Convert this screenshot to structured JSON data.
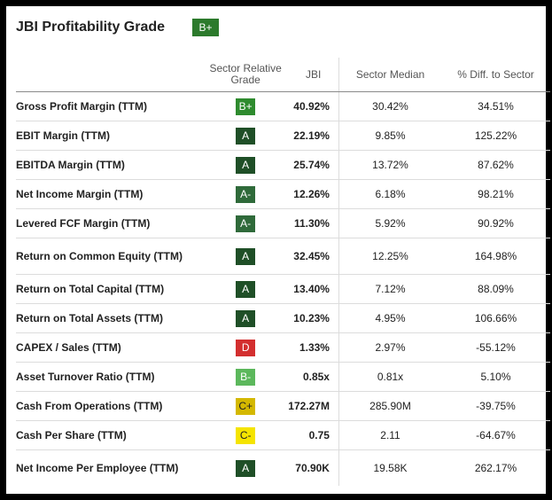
{
  "header": {
    "title": "JBI Profitability Grade",
    "overall_grade": "B+",
    "overall_grade_bg": "#2c7a2c",
    "overall_grade_fg": "#ffffff"
  },
  "columns": {
    "metric": "",
    "grade": "Sector Relative Grade",
    "jbi": "JBI",
    "median": "Sector Median",
    "diff": "% Diff. to Sector"
  },
  "rows": [
    {
      "metric": "Gross Profit Margin (TTM)",
      "grade": "B+",
      "grade_bg": "#2e8b2e",
      "grade_fg": "#ffffff",
      "jbi": "40.92%",
      "median": "30.42%",
      "diff": "34.51%",
      "tall": false
    },
    {
      "metric": "EBIT Margin (TTM)",
      "grade": "A",
      "grade_bg": "#1f4f27",
      "grade_fg": "#ffffff",
      "jbi": "22.19%",
      "median": "9.85%",
      "diff": "125.22%",
      "tall": false
    },
    {
      "metric": "EBITDA Margin (TTM)",
      "grade": "A",
      "grade_bg": "#1f4f27",
      "grade_fg": "#ffffff",
      "jbi": "25.74%",
      "median": "13.72%",
      "diff": "87.62%",
      "tall": false
    },
    {
      "metric": "Net Income Margin (TTM)",
      "grade": "A-",
      "grade_bg": "#2f6a3a",
      "grade_fg": "#ffffff",
      "jbi": "12.26%",
      "median": "6.18%",
      "diff": "98.21%",
      "tall": false
    },
    {
      "metric": "Levered FCF Margin (TTM)",
      "grade": "A-",
      "grade_bg": "#2f6a3a",
      "grade_fg": "#ffffff",
      "jbi": "11.30%",
      "median": "5.92%",
      "diff": "90.92%",
      "tall": false
    },
    {
      "metric": "Return on Common Equity (TTM)",
      "grade": "A",
      "grade_bg": "#1f4f27",
      "grade_fg": "#ffffff",
      "jbi": "32.45%",
      "median": "12.25%",
      "diff": "164.98%",
      "tall": true
    },
    {
      "metric": "Return on Total Capital (TTM)",
      "grade": "A",
      "grade_bg": "#1f4f27",
      "grade_fg": "#ffffff",
      "jbi": "13.40%",
      "median": "7.12%",
      "diff": "88.09%",
      "tall": false
    },
    {
      "metric": "Return on Total Assets (TTM)",
      "grade": "A",
      "grade_bg": "#1f4f27",
      "grade_fg": "#ffffff",
      "jbi": "10.23%",
      "median": "4.95%",
      "diff": "106.66%",
      "tall": false
    },
    {
      "metric": "CAPEX / Sales (TTM)",
      "grade": "D",
      "grade_bg": "#d32f2f",
      "grade_fg": "#ffffff",
      "jbi": "1.33%",
      "median": "2.97%",
      "diff": "-55.12%",
      "tall": false
    },
    {
      "metric": "Asset Turnover Ratio (TTM)",
      "grade": "B-",
      "grade_bg": "#5cb85c",
      "grade_fg": "#ffffff",
      "jbi": "0.85x",
      "median": "0.81x",
      "diff": "5.10%",
      "tall": false
    },
    {
      "metric": "Cash From Operations (TTM)",
      "grade": "C+",
      "grade_bg": "#d4b800",
      "grade_fg": "#222222",
      "jbi": "172.27M",
      "median": "285.90M",
      "diff": "-39.75%",
      "tall": false
    },
    {
      "metric": "Cash Per Share (TTM)",
      "grade": "C-",
      "grade_bg": "#f5e400",
      "grade_fg": "#222222",
      "jbi": "0.75",
      "median": "2.11",
      "diff": "-64.67%",
      "tall": false
    },
    {
      "metric": "Net Income Per Employee (TTM)",
      "grade": "A",
      "grade_bg": "#1f4f27",
      "grade_fg": "#ffffff",
      "jbi": "70.90K",
      "median": "19.58K",
      "diff": "262.17%",
      "tall": true
    }
  ]
}
